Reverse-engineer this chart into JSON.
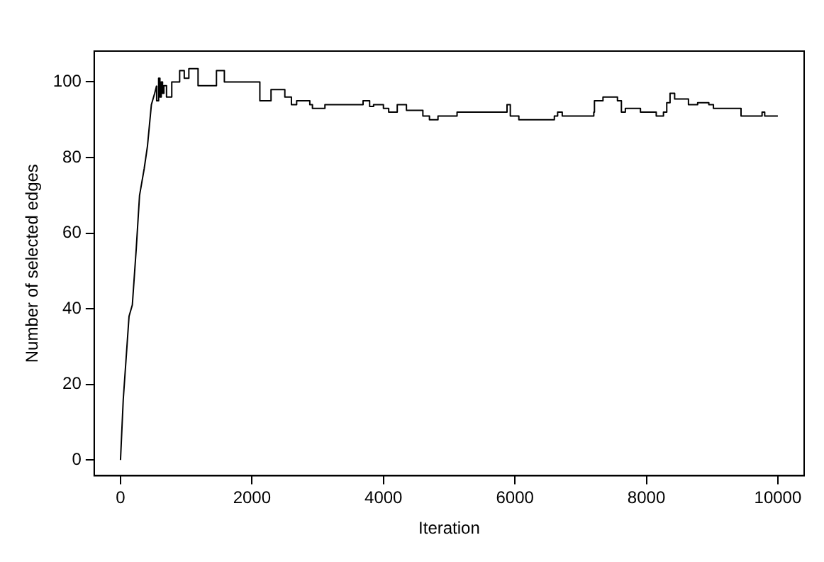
{
  "chart_data": {
    "type": "line",
    "xlabel": "Iteration",
    "ylabel": "Number of selected edges",
    "xlim": [
      -400,
      10400
    ],
    "xticks": [
      0,
      2000,
      4000,
      6000,
      8000,
      10000
    ],
    "ylim": [
      -4.16,
      108.16
    ],
    "yticks": [
      0,
      20,
      40,
      60,
      80,
      100
    ],
    "grid": false,
    "legend": false,
    "series": [
      {
        "type": "line",
        "color": "#000000",
        "x": [
          0,
          42,
          130,
          180,
          240,
          290,
          360,
          410,
          470,
          520,
          550
        ],
        "values": [
          0,
          16,
          38,
          41,
          56,
          70,
          77,
          83,
          94,
          97,
          99
        ]
      },
      {
        "type": "step",
        "color": "#000000",
        "x": [
          550,
          580,
          600,
          620,
          640,
          660,
          700,
          780,
          900,
          970,
          1040,
          1180,
          1280,
          1460,
          1580,
          1700,
          2120,
          2190,
          2290,
          2400,
          2500,
          2600,
          2680,
          2880,
          2920,
          3110,
          3690,
          3790,
          3850,
          4000,
          4080,
          4210,
          4350,
          4600,
          4700,
          4830,
          5120,
          5260,
          5880,
          5930,
          6060,
          6510,
          6600,
          6650,
          6720,
          6800,
          7200,
          7210,
          7340,
          7420,
          7560,
          7620,
          7680,
          7910,
          8150,
          8260,
          8310,
          8360,
          8430,
          8500,
          8640,
          8780,
          8950,
          9020,
          9160,
          9440,
          9510,
          9760,
          9800,
          9870,
          10000
        ],
        "values": [
          99,
          95,
          101,
          96,
          100,
          97,
          99,
          96,
          100,
          103,
          101,
          103.5,
          99,
          99,
          103,
          100,
          100,
          95,
          95,
          98,
          98,
          96,
          94,
          95,
          94,
          93,
          94,
          95,
          93.5,
          94,
          93,
          92,
          94,
          92.5,
          91,
          90,
          91,
          92,
          92,
          94,
          91,
          90,
          90,
          91,
          92,
          91,
          91,
          92,
          95,
          96,
          96,
          95,
          92,
          93,
          92,
          91,
          92,
          94.5,
          97,
          95.5,
          95.5,
          94,
          94.5,
          94,
          93,
          93,
          91,
          91,
          92,
          91,
          91
        ]
      }
    ]
  }
}
